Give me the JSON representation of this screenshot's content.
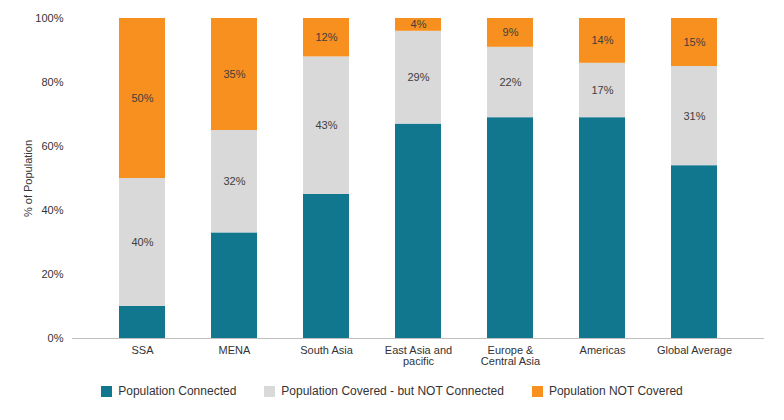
{
  "chart_data": {
    "type": "bar",
    "stacked": true,
    "data_labels": true,
    "legend": "bottom",
    "grid": false,
    "ylabel": "% of Population",
    "categories": [
      "SSA",
      "MENA",
      "South Asia",
      "East Asia and pacific",
      "Europe & Central Asia",
      "Americas",
      "Global Average"
    ],
    "ylim": [
      0,
      100
    ],
    "yticks": [
      {
        "value": 0,
        "label": "0%"
      },
      {
        "value": 20,
        "label": "20%"
      },
      {
        "value": 40,
        "label": "40%"
      },
      {
        "value": 60,
        "label": "60%"
      },
      {
        "value": 80,
        "label": "80%"
      },
      {
        "value": 100,
        "label": "100%"
      }
    ],
    "series": [
      {
        "name": "Population Connected",
        "color": "#10778f",
        "values": [
          10,
          33,
          45,
          67,
          69,
          69,
          54
        ]
      },
      {
        "name": "Population Covered - but NOT Connected",
        "color": "#d9d9d9",
        "values": [
          40,
          32,
          43,
          29,
          22,
          17,
          31
        ],
        "value_labels": [
          "40%",
          "32%",
          "43%",
          "29%",
          "22%",
          "17%",
          "31%"
        ]
      },
      {
        "name": "Population NOT Covered",
        "color": "#f7901e",
        "values": [
          50,
          35,
          12,
          4,
          9,
          14,
          15
        ],
        "value_labels": [
          "50%",
          "35%",
          "12%",
          "4%",
          "9%",
          "14%",
          "15%"
        ]
      }
    ]
  }
}
